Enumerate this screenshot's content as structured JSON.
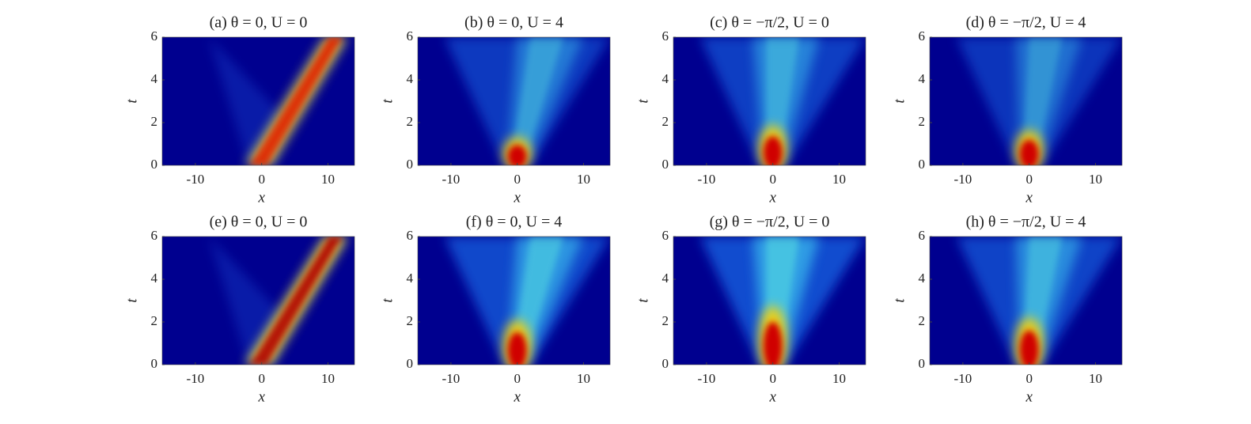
{
  "chart_data": [
    {
      "type": "heatmap",
      "title": "(a) θ = 0, U = 0",
      "xlabel": "x",
      "ylabel": "t",
      "xlim": [
        -15,
        14
      ],
      "ylim": [
        0,
        6
      ],
      "xticks": [
        -10,
        0,
        10
      ],
      "yticks": [
        0,
        2,
        4,
        6
      ]
    },
    {
      "type": "heatmap",
      "title": "(b) θ = 0, U = 4",
      "xlabel": "x",
      "ylabel": "t",
      "xlim": [
        -15,
        14
      ],
      "ylim": [
        0,
        6
      ],
      "xticks": [
        -10,
        0,
        10
      ],
      "yticks": [
        0,
        2,
        4,
        6
      ]
    },
    {
      "type": "heatmap",
      "title": "(c) θ = −π/2, U = 0",
      "xlabel": "x",
      "ylabel": "t",
      "xlim": [
        -15,
        14
      ],
      "ylim": [
        0,
        6
      ],
      "xticks": [
        -10,
        0,
        10
      ],
      "yticks": [
        0,
        2,
        4,
        6
      ]
    },
    {
      "type": "heatmap",
      "title": "(d) θ = −π/2, U = 4",
      "xlabel": "x",
      "ylabel": "t",
      "xlim": [
        -15,
        14
      ],
      "ylim": [
        0,
        6
      ],
      "xticks": [
        -10,
        0,
        10
      ],
      "yticks": [
        0,
        2,
        4,
        6
      ]
    },
    {
      "type": "heatmap",
      "title": "(e) θ = 0, U = 0",
      "xlabel": "x",
      "ylabel": "t",
      "xlim": [
        -15,
        14
      ],
      "ylim": [
        0,
        6
      ],
      "xticks": [
        -10,
        0,
        10
      ],
      "yticks": [
        0,
        2,
        4,
        6
      ]
    },
    {
      "type": "heatmap",
      "title": "(f) θ = 0, U = 4",
      "xlabel": "x",
      "ylabel": "t",
      "xlim": [
        -15,
        14
      ],
      "ylim": [
        0,
        6
      ],
      "xticks": [
        -10,
        0,
        10
      ],
      "yticks": [
        0,
        2,
        4,
        6
      ]
    },
    {
      "type": "heatmap",
      "title": "(g) θ = −π/2, U = 0",
      "xlabel": "x",
      "ylabel": "t",
      "xlim": [
        -15,
        14
      ],
      "ylim": [
        0,
        6
      ],
      "xticks": [
        -10,
        0,
        10
      ],
      "yticks": [
        0,
        2,
        4,
        6
      ]
    },
    {
      "type": "heatmap",
      "title": "(h) θ = −π/2, U = 4",
      "xlabel": "x",
      "ylabel": "t",
      "xlim": [
        -15,
        14
      ],
      "ylim": [
        0,
        6
      ],
      "xticks": [
        -10,
        0,
        10
      ],
      "yticks": [
        0,
        2,
        4,
        6
      ]
    }
  ]
}
